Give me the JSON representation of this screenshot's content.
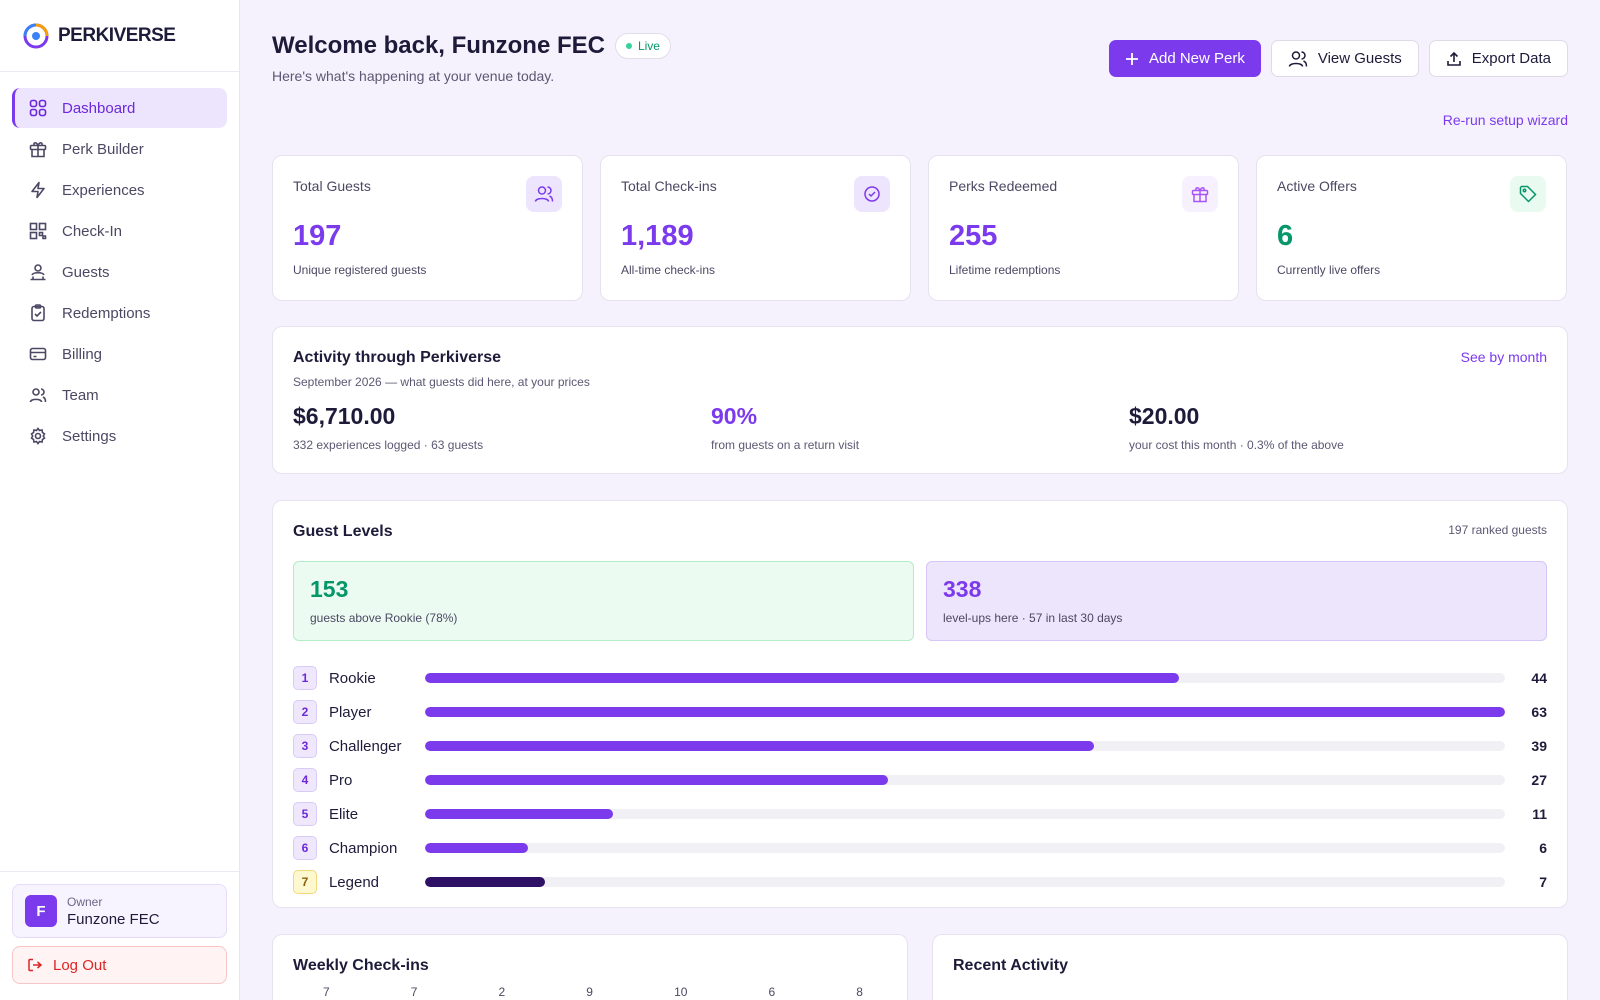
{
  "brand": {
    "name": "PERKIVERSE"
  },
  "colors": {
    "accent": "#7c3aed",
    "success": "#059669",
    "danger": "#dc2626"
  },
  "sidebar": {
    "items": [
      {
        "label": "Dashboard",
        "icon": "grid-icon",
        "active": true
      },
      {
        "label": "Perk Builder",
        "icon": "gift-icon"
      },
      {
        "label": "Experiences",
        "icon": "lightning-icon"
      },
      {
        "label": "Check-In",
        "icon": "qr-icon"
      },
      {
        "label": "Guests",
        "icon": "guests-icon"
      },
      {
        "label": "Redemptions",
        "icon": "clipboard-check-icon"
      },
      {
        "label": "Billing",
        "icon": "card-icon"
      },
      {
        "label": "Team",
        "icon": "team-icon"
      },
      {
        "label": "Settings",
        "icon": "gear-icon"
      }
    ],
    "owner": {
      "initial": "F",
      "role": "Owner",
      "name": "Funzone FEC"
    },
    "logout_label": "Log Out"
  },
  "header": {
    "title": "Welcome back, Funzone FEC",
    "status": "Live",
    "subtitle": "Here's what's happening at your venue today.",
    "add_perk": "Add New Perk",
    "view_guests": "View Guests",
    "export": "Export Data",
    "rerun": "Re-run setup wizard"
  },
  "stats": [
    {
      "label": "Total Guests",
      "value": "197",
      "sub": "Unique registered guests",
      "icon": "users-icon"
    },
    {
      "label": "Total Check-ins",
      "value": "1,189",
      "sub": "All-time check-ins",
      "icon": "check-circle-icon"
    },
    {
      "label": "Perks Redeemed",
      "value": "255",
      "sub": "Lifetime redemptions",
      "icon": "gift-icon"
    },
    {
      "label": "Active Offers",
      "value": "6",
      "sub": "Currently live offers",
      "icon": "tag-icon"
    }
  ],
  "activity": {
    "title": "Activity through Perkiverse",
    "desc": "September 2026 — what guests did here, at your prices",
    "see_by_month": "See by month",
    "metrics": [
      {
        "value": "$6,710.00",
        "sub": "332 experiences logged · 63 guests"
      },
      {
        "value": "90%",
        "sub": "from guests on a return visit"
      },
      {
        "value": "$20.00",
        "sub": "your cost this month · 0.3% of the above"
      }
    ]
  },
  "levels": {
    "title": "Guest Levels",
    "ranked": "197 ranked guests",
    "above_rookie": {
      "value": "153",
      "sub": "guests above Rookie (78%)"
    },
    "level_ups": {
      "value": "338",
      "sub": "level-ups here · 57 in last 30 days"
    },
    "max": 63,
    "rows": [
      {
        "num": "1",
        "name": "Rookie",
        "count": 44
      },
      {
        "num": "2",
        "name": "Player",
        "count": 63
      },
      {
        "num": "3",
        "name": "Challenger",
        "count": 39
      },
      {
        "num": "4",
        "name": "Pro",
        "count": 27
      },
      {
        "num": "5",
        "name": "Elite",
        "count": 11
      },
      {
        "num": "6",
        "name": "Champion",
        "count": 6
      },
      {
        "num": "7",
        "name": "Legend",
        "count": 7
      }
    ]
  },
  "weekly": {
    "title": "Weekly Check-ins",
    "values": [
      "7",
      "7",
      "2",
      "9",
      "10",
      "6",
      "8"
    ]
  },
  "recent": {
    "title": "Recent Activity"
  }
}
